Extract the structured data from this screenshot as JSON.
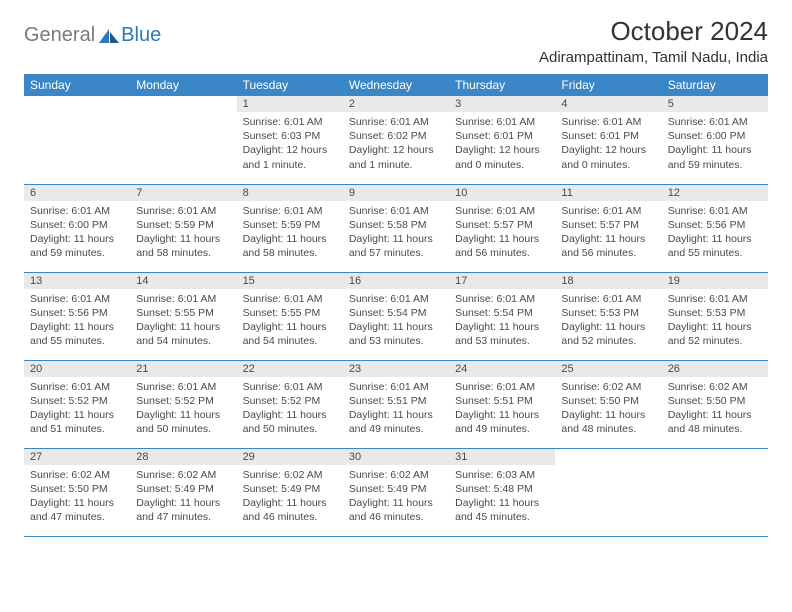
{
  "brand": {
    "part1": "General",
    "part2": "Blue"
  },
  "title": "October 2024",
  "location": "Adirampattinam, Tamil Nadu, India",
  "colors": {
    "header_bg": "#3b86c6",
    "header_text": "#ffffff",
    "daynum_bg": "#e9e9e9",
    "body_text": "#4a4a4a",
    "rule": "#3b86c6",
    "logo_gray": "#7a7a7a",
    "logo_blue": "#2f79b9"
  },
  "weekdays": [
    "Sunday",
    "Monday",
    "Tuesday",
    "Wednesday",
    "Thursday",
    "Friday",
    "Saturday"
  ],
  "weeks": [
    [
      null,
      null,
      {
        "n": "1",
        "sr": "6:01 AM",
        "ss": "6:03 PM",
        "dl": "12 hours and 1 minute."
      },
      {
        "n": "2",
        "sr": "6:01 AM",
        "ss": "6:02 PM",
        "dl": "12 hours and 1 minute."
      },
      {
        "n": "3",
        "sr": "6:01 AM",
        "ss": "6:01 PM",
        "dl": "12 hours and 0 minutes."
      },
      {
        "n": "4",
        "sr": "6:01 AM",
        "ss": "6:01 PM",
        "dl": "12 hours and 0 minutes."
      },
      {
        "n": "5",
        "sr": "6:01 AM",
        "ss": "6:00 PM",
        "dl": "11 hours and 59 minutes."
      }
    ],
    [
      {
        "n": "6",
        "sr": "6:01 AM",
        "ss": "6:00 PM",
        "dl": "11 hours and 59 minutes."
      },
      {
        "n": "7",
        "sr": "6:01 AM",
        "ss": "5:59 PM",
        "dl": "11 hours and 58 minutes."
      },
      {
        "n": "8",
        "sr": "6:01 AM",
        "ss": "5:59 PM",
        "dl": "11 hours and 58 minutes."
      },
      {
        "n": "9",
        "sr": "6:01 AM",
        "ss": "5:58 PM",
        "dl": "11 hours and 57 minutes."
      },
      {
        "n": "10",
        "sr": "6:01 AM",
        "ss": "5:57 PM",
        "dl": "11 hours and 56 minutes."
      },
      {
        "n": "11",
        "sr": "6:01 AM",
        "ss": "5:57 PM",
        "dl": "11 hours and 56 minutes."
      },
      {
        "n": "12",
        "sr": "6:01 AM",
        "ss": "5:56 PM",
        "dl": "11 hours and 55 minutes."
      }
    ],
    [
      {
        "n": "13",
        "sr": "6:01 AM",
        "ss": "5:56 PM",
        "dl": "11 hours and 55 minutes."
      },
      {
        "n": "14",
        "sr": "6:01 AM",
        "ss": "5:55 PM",
        "dl": "11 hours and 54 minutes."
      },
      {
        "n": "15",
        "sr": "6:01 AM",
        "ss": "5:55 PM",
        "dl": "11 hours and 54 minutes."
      },
      {
        "n": "16",
        "sr": "6:01 AM",
        "ss": "5:54 PM",
        "dl": "11 hours and 53 minutes."
      },
      {
        "n": "17",
        "sr": "6:01 AM",
        "ss": "5:54 PM",
        "dl": "11 hours and 53 minutes."
      },
      {
        "n": "18",
        "sr": "6:01 AM",
        "ss": "5:53 PM",
        "dl": "11 hours and 52 minutes."
      },
      {
        "n": "19",
        "sr": "6:01 AM",
        "ss": "5:53 PM",
        "dl": "11 hours and 52 minutes."
      }
    ],
    [
      {
        "n": "20",
        "sr": "6:01 AM",
        "ss": "5:52 PM",
        "dl": "11 hours and 51 minutes."
      },
      {
        "n": "21",
        "sr": "6:01 AM",
        "ss": "5:52 PM",
        "dl": "11 hours and 50 minutes."
      },
      {
        "n": "22",
        "sr": "6:01 AM",
        "ss": "5:52 PM",
        "dl": "11 hours and 50 minutes."
      },
      {
        "n": "23",
        "sr": "6:01 AM",
        "ss": "5:51 PM",
        "dl": "11 hours and 49 minutes."
      },
      {
        "n": "24",
        "sr": "6:01 AM",
        "ss": "5:51 PM",
        "dl": "11 hours and 49 minutes."
      },
      {
        "n": "25",
        "sr": "6:02 AM",
        "ss": "5:50 PM",
        "dl": "11 hours and 48 minutes."
      },
      {
        "n": "26",
        "sr": "6:02 AM",
        "ss": "5:50 PM",
        "dl": "11 hours and 48 minutes."
      }
    ],
    [
      {
        "n": "27",
        "sr": "6:02 AM",
        "ss": "5:50 PM",
        "dl": "11 hours and 47 minutes."
      },
      {
        "n": "28",
        "sr": "6:02 AM",
        "ss": "5:49 PM",
        "dl": "11 hours and 47 minutes."
      },
      {
        "n": "29",
        "sr": "6:02 AM",
        "ss": "5:49 PM",
        "dl": "11 hours and 46 minutes."
      },
      {
        "n": "30",
        "sr": "6:02 AM",
        "ss": "5:49 PM",
        "dl": "11 hours and 46 minutes."
      },
      {
        "n": "31",
        "sr": "6:03 AM",
        "ss": "5:48 PM",
        "dl": "11 hours and 45 minutes."
      },
      null,
      null
    ]
  ]
}
